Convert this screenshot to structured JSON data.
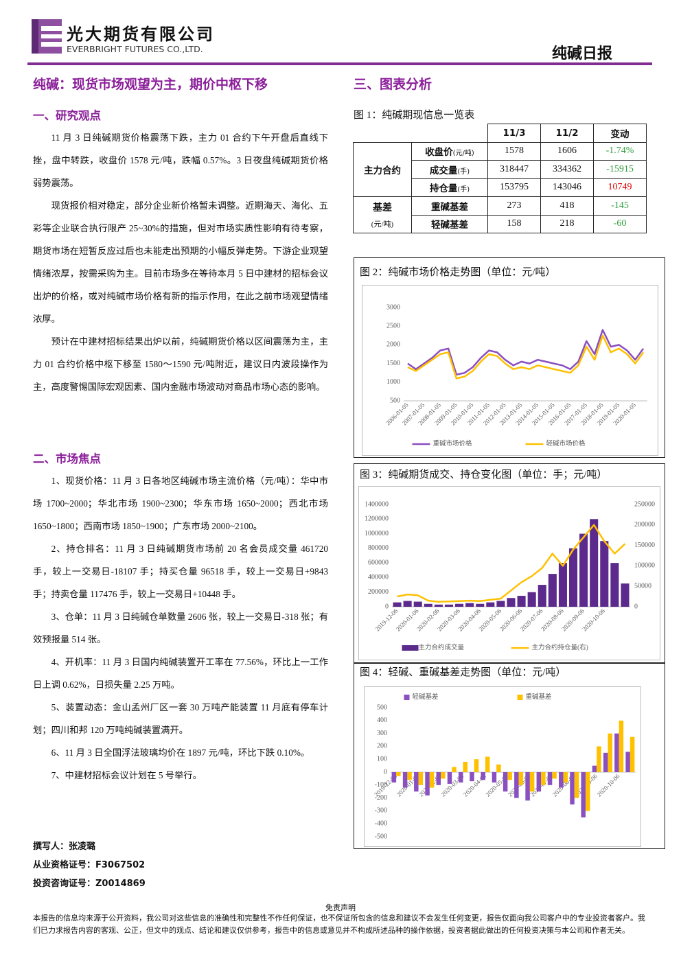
{
  "header": {
    "company_cn": "光大期货有限公司",
    "company_en": "EVERBRIGHT FUTURES CO.,LTD.",
    "report_title": "纯碱日报"
  },
  "headline": "纯碱：现货市场观望为主，期价中枢下移",
  "analysis_title": "三、图表分析",
  "sections": [
    {
      "title": "一、研究观点",
      "paragraphs": [
        "11 月 3 日纯碱期货价格震荡下跌，主力 01 合约下午开盘后直线下挫，盘中转跌，收盘价 1578 元/吨，跌幅 0.57%。3 日夜盘纯碱期货价格弱势震荡。",
        "现货报价相对稳定，部分企业新价格暂未调整。近期海天、海化、五彩等企业联合执行限产 25~30%的措施，但对市场实质性影响有待考察，期货市场在短暂反应过后也未能走出预期的小幅反弹走势。下游企业观望情绪浓厚，按需采购为主。目前市场多在等待本月 5 日中建材的招标会议出炉的价格，或对纯碱市场价格有新的指示作用，在此之前市场观望情绪浓厚。",
        "预计在中建材招标结果出炉以前，纯碱期货价格以区间震荡为主，主力 01 合约价格中枢下移至 1580～1590 元/吨附近，建议日内波段操作为主，高度警惕国际宏观因素、国内金融市场波动对商品市场心态的影响。"
      ]
    },
    {
      "title": "二、市场焦点",
      "paragraphs": [
        "1、现货价格：11 月 3 日各地区纯碱市场主流价格（元/吨）：华中市场 1700~2000；华北市场 1900~2300；华东市场 1650~2000；西北市场 1650~1800；西南市场 1850~1900；广东市场 2000~2100。",
        "2、持仓排名：11 月 3 日纯碱期货市场前 20 名会员成交量 461720 手，较上一交易日-18107 手；持买仓量 96518 手，较上一交易日+9843 手；持卖仓量 117476 手，较上一交易日+10448 手。",
        "3、仓单：11 月 3 日纯碱仓单数量 2606 张，较上一交易日-318 张；有效预报量 514 张。",
        "4、开机率：11 月 3 日国内纯碱装置开工率在 77.56%，环比上一工作日上调 0.62%，日损失量 2.25 万吨。",
        "5、装置动态：金山孟州厂区一套 30 万吨产能装置 11 月底有停车计划；四川和邦 120 万吨纯碱装置满开。",
        "6、11 月 3 日全国浮法玻璃均价在 1897 元/吨，环比下跌 0.10%。",
        "7、中建材招标会议计划在 5 号举行。"
      ]
    }
  ],
  "authors": [
    "撰写人：张凌璐",
    "从业资格证号：F3067502",
    "投资咨询证号：Z0014869"
  ],
  "table": {
    "caption": "图 1：纯碱期现信息一览表",
    "columns": [
      "11/3",
      "11/2",
      "变动"
    ],
    "groups": [
      {
        "label": "主力合约",
        "rows": [
          {
            "label": "收盘价",
            "unit": "(元/吨)",
            "values": [
              1578,
              1606,
              "-1.74%"
            ],
            "change_color": "#2e9e3a"
          },
          {
            "label": "成交量",
            "unit": "(手)",
            "values": [
              318447,
              334362,
              -15915
            ],
            "change_color": "#2e9e3a"
          },
          {
            "label": "持仓量",
            "unit": "(手)",
            "values": [
              153795,
              143046,
              10749
            ],
            "change_color": "#e00000"
          }
        ]
      },
      {
        "label": "基差",
        "unit": "(元/吨)",
        "rows": [
          {
            "label": "重碱基差",
            "values": [
              273,
              418,
              -145
            ],
            "change_color": "#2e9e3a"
          },
          {
            "label": "轻碱基差",
            "values": [
              158,
              218,
              -60
            ],
            "change_color": "#2e9e3a"
          }
        ]
      }
    ]
  },
  "chart_data": [
    {
      "type": "line",
      "title": "图 2：纯碱市场价格走势图（单位：元/吨）",
      "categories": [
        "2006-01-05",
        null,
        "2007-01-05",
        null,
        "2008-01-05",
        null,
        "2009-01-05",
        null,
        "2010-01-05",
        null,
        "2011-01-05",
        null,
        "2012-01-05",
        null,
        "2013-01-05",
        null,
        "2014-01-05",
        null,
        "2015-01-05",
        null,
        "2016-01-05",
        null,
        "2017-01-05",
        null,
        "2018-01-05",
        null,
        "2019-01-05",
        null,
        "2020-01-05",
        null
      ],
      "series": [
        {
          "name": "重碱市场价格",
          "color": "#8a4fc0",
          "values": [
            1500,
            1350,
            1500,
            1650,
            1850,
            1900,
            1200,
            1250,
            1400,
            1650,
            1850,
            1800,
            1600,
            1450,
            1550,
            1500,
            1600,
            1550,
            1500,
            1450,
            1350,
            1550,
            2100,
            1750,
            2400,
            1950,
            2000,
            1850,
            1600,
            1900
          ]
        },
        {
          "name": "轻碱市场价格",
          "color": "#ffc000",
          "values": [
            1400,
            1300,
            1450,
            1600,
            1750,
            1800,
            1100,
            1150,
            1300,
            1550,
            1750,
            1700,
            1500,
            1350,
            1400,
            1350,
            1450,
            1400,
            1350,
            1300,
            1250,
            1450,
            1950,
            1600,
            2250,
            1800,
            1900,
            1750,
            1500,
            1800
          ]
        }
      ],
      "ylim": [
        500,
        3000
      ],
      "yticks": [
        500,
        1000,
        1500,
        2000,
        2500,
        3000
      ],
      "grid": false,
      "legend": "bottom"
    },
    {
      "type": "combo",
      "title": "图 3：纯碱期货成交、持仓变化图（单位：手；元/吨）",
      "categories": [
        "2019-12-06",
        null,
        "2020-01-06",
        null,
        "2020-02-06",
        null,
        "2020-03-06",
        null,
        "2020-04-06",
        null,
        "2020-05-06",
        null,
        "2020-06-06",
        null,
        "2020-07-06",
        null,
        "2020-08-06",
        null,
        "2020-09-06",
        null,
        "2020-10-06",
        null,
        null
      ],
      "series": [
        {
          "name": "主力合约成交量",
          "color": "#5b2a8c",
          "values": [
            60000,
            80000,
            70000,
            40000,
            30000,
            30000,
            40000,
            50000,
            40000,
            60000,
            80000,
            120000,
            150000,
            200000,
            300000,
            450000,
            600000,
            800000,
            1000000,
            1200000,
            900000,
            600000,
            318447
          ]
        },
        {
          "name": "主力合约持仓量(右)",
          "color": "#ffc000",
          "axis": "y2",
          "values": [
            25000,
            30000,
            28000,
            15000,
            12000,
            13000,
            14000,
            15000,
            14000,
            17000,
            20000,
            40000,
            60000,
            75000,
            95000,
            130000,
            100000,
            140000,
            170000,
            200000,
            160000,
            130000,
            153795
          ]
        }
      ],
      "ylim": [
        0,
        1400000
      ],
      "yticks": [
        0,
        200000,
        400000,
        600000,
        800000,
        1000000,
        1200000,
        1400000
      ],
      "y2lim": [
        0,
        250000
      ],
      "y2ticks": [
        0,
        50000,
        100000,
        150000,
        200000,
        250000
      ],
      "grid": false,
      "legend": "bottom"
    },
    {
      "type": "bar",
      "title": "图 4：轻碱、重碱基差走势图（单位：元/吨）",
      "categories": [
        "2019-12-06",
        null,
        "2020-01-06",
        null,
        "2020-02-06",
        null,
        "2020-03-06",
        null,
        "2020-04-06",
        null,
        "2020-05-06",
        null,
        "2020-06-06",
        null,
        "2020-07-06",
        null,
        "2020-08-06",
        null,
        "2020-09-06",
        null,
        "2020-10-06",
        null
      ],
      "series": [
        {
          "name": "轻碱基差",
          "color": "#8a4fc0",
          "values": [
            -80,
            -120,
            -150,
            -180,
            -100,
            -90,
            -80,
            -70,
            -60,
            -80,
            -150,
            -200,
            -220,
            -150,
            -100,
            -120,
            -250,
            -350,
            50,
            150,
            300,
            158
          ]
        },
        {
          "name": "重碱基差",
          "color": "#ffc000",
          "values": [
            -30,
            -60,
            -100,
            -120,
            -50,
            40,
            80,
            100,
            120,
            60,
            -60,
            -100,
            -150,
            -100,
            -50,
            -80,
            -200,
            -300,
            200,
            300,
            400,
            273
          ]
        }
      ],
      "ylim": [
        -500,
        500
      ],
      "yticks": [
        -500,
        -400,
        -300,
        -200,
        -100,
        0,
        100,
        200,
        300,
        400,
        500
      ],
      "grid": false,
      "legend": "top"
    }
  ],
  "disclaimer": {
    "title": "免责声明",
    "text": "本报告的信息均来源于公开资料，我公司对这些信息的准确性和完整性不作任何保证，也不保证所包含的信息和建议不会发生任何变更，报告仅面向我公司客户中的专业投资者客户。我们已力求报告内容的客观、公正，但文中的观点、结论和建议仅供参考，报告中的信息或意见并不构成所述品种的操作依据，投资者据此做出的任何投资决策与本公司和作者无关。"
  }
}
